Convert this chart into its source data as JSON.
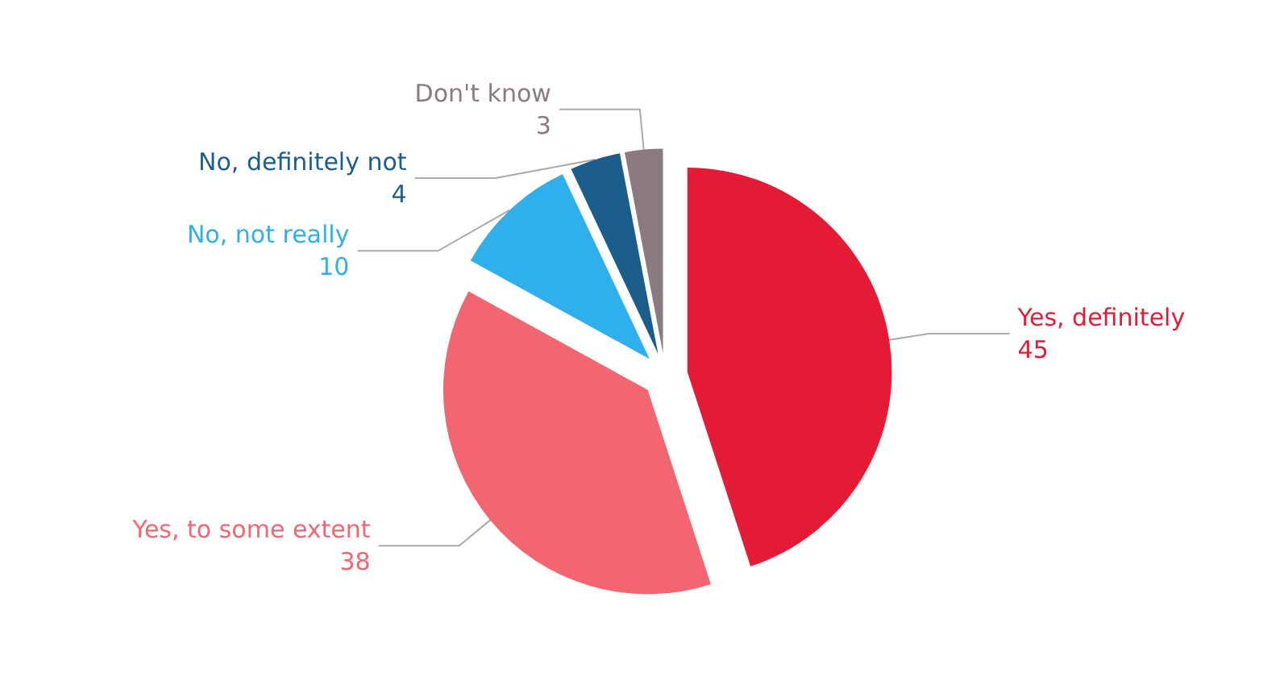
{
  "chart_data": {
    "type": "pie",
    "categories": [
      "Yes, definitely",
      "Yes, to some extent",
      "No, not really",
      "No, definitely not",
      "Don't know"
    ],
    "values": [
      45,
      38,
      10,
      4,
      3
    ],
    "colors": [
      "#e31b37",
      "#f26671",
      "#2fb0ea",
      "#1b5e8c",
      "#8b7a80"
    ],
    "data_labels": true,
    "legend": false
  }
}
